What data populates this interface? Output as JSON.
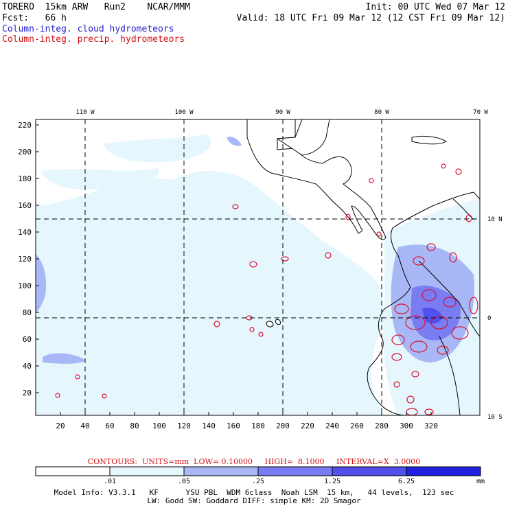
{
  "header": {
    "model_line": "TORERO  15km ARW   Run2    NCAR/MMM",
    "fcst_line": "Fcst:   66 h",
    "init_line": "Init: 00 UTC Wed 07 Mar 12",
    "valid_line": "Valid: 18 UTC Fri 09 Mar 12 (12 CST Fri 09 Mar 12)",
    "field1": "Column-integ. cloud hydrometeors",
    "field2": "Column-integ. precip. hydrometeors"
  },
  "colors": {
    "field1_text": "#1f1fcf",
    "field2_text": "#d01010",
    "coast": "#000000",
    "precip_contour": "#dd1030",
    "shade_01": "#e6f6fd",
    "shade_05": "#a8b8f6",
    "shade_25": "#7a7cf2",
    "shade_125": "#5050ea",
    "shade_625": "#2020e0"
  },
  "map": {
    "top_lon_labels": [
      "110 W",
      "100 W",
      "90 W",
      "80 W",
      "70 W"
    ],
    "right_lat_labels": [
      "10 N",
      "0",
      "10 S"
    ],
    "y_ticks": [
      "220",
      "200",
      "180",
      "160",
      "140",
      "120",
      "100",
      "80",
      "60",
      "40",
      "20"
    ],
    "x_ticks": [
      "20",
      "40",
      "60",
      "80",
      "100",
      "120",
      "140",
      "160",
      "180",
      "200",
      "220",
      "240",
      "260",
      "280",
      "300",
      "320"
    ]
  },
  "contours_text": "CONTOURS:  UNITS=mm  LOW= 0.10000     HIGH=  8.1000     INTERVAL=X  3.0000",
  "legend": {
    "tick_labels": [
      ".01",
      ".05",
      ".25",
      "1.25",
      "6.25"
    ],
    "unit": "mm"
  },
  "model_info": {
    "line1": "Model Info: V3.3.1   KF      YSU PBL  WDM 6class  Noah LSM  15 km,   44 levels,  123 sec",
    "line2": "LW: Godd SW: Goddard DIFF: simple KM: 2D Smagor"
  }
}
